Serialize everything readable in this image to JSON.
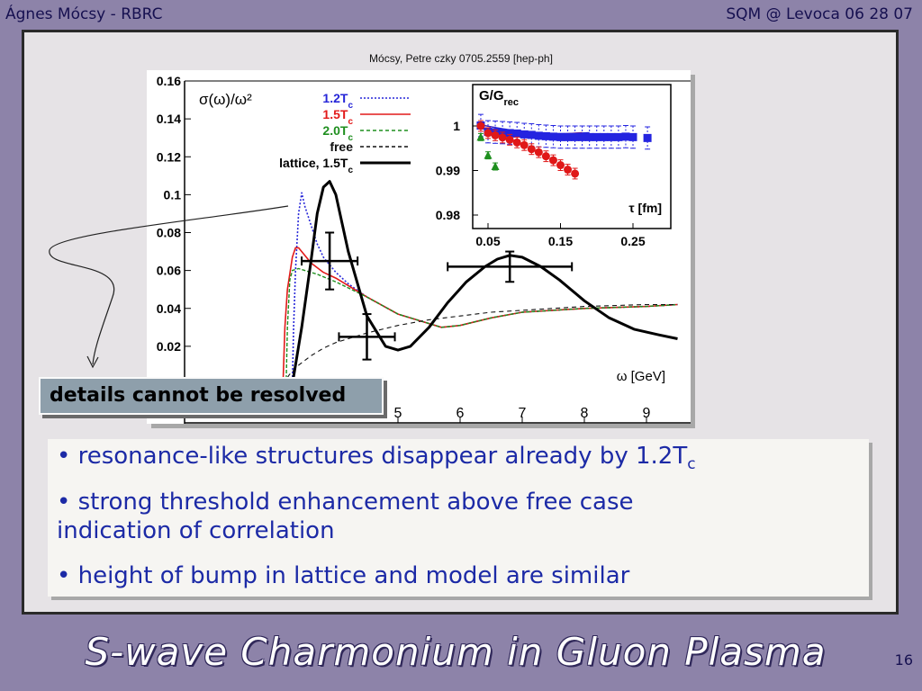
{
  "header": {
    "author": "Ágnes Mócsy - RBRC",
    "event": "SQM @ Levoca  06 28 07"
  },
  "citation": "Mócsy, Petre  czky 0705.2559 [hep-ph]",
  "chart_data": {
    "type": "line",
    "ylabel": "σ(ω)/ω²",
    "xlabel": "ω [GeV]",
    "x_ticks": [
      "5",
      "6",
      "7",
      "8",
      "9"
    ],
    "y_ticks": [
      "0.16",
      "0.14",
      "0.12",
      "0.1",
      "0.08",
      "0.06",
      "0.04",
      "0.02"
    ],
    "xlim": [
      3.2,
      9.5
    ],
    "ylim": [
      0,
      0.16
    ],
    "legend": {
      "placement": "top-left",
      "entries": [
        {
          "label": "1.2T",
          "sub": "c",
          "color": "#2626d8",
          "style": "dotted"
        },
        {
          "label": "1.5T",
          "sub": "c",
          "color": "#e21a1a",
          "style": "solid"
        },
        {
          "label": "2.0T",
          "sub": "c",
          "color": "#1f8f1f",
          "style": "dashed"
        },
        {
          "label": "free",
          "sub": "",
          "color": "#111111",
          "style": "dashed"
        },
        {
          "label": "lattice, 1.5T",
          "sub": "c",
          "color": "#000000",
          "style": "thick"
        }
      ]
    },
    "series": [
      {
        "name": "1.2Tc",
        "color": "#2626d8",
        "x": [
          3.3,
          3.32,
          3.35,
          3.4,
          3.45,
          3.5,
          3.6,
          3.7,
          3.8,
          4.0,
          4.2,
          4.5,
          5.0,
          5.5,
          5.7,
          6.0,
          6.5,
          7.0,
          8.0,
          9.0,
          9.5
        ],
        "y": [
          0.0,
          0.03,
          0.06,
          0.09,
          0.101,
          0.094,
          0.084,
          0.074,
          0.067,
          0.059,
          0.053,
          0.046,
          0.037,
          0.032,
          0.03,
          0.031,
          0.035,
          0.038,
          0.04,
          0.041,
          0.042
        ]
      },
      {
        "name": "1.5Tc",
        "color": "#e21a1a",
        "x": [
          3.15,
          3.18,
          3.22,
          3.3,
          3.35,
          3.4,
          3.5,
          3.6,
          3.8,
          4.0,
          4.5,
          5.0,
          5.5,
          5.7,
          6.0,
          6.5,
          7.0,
          8.0,
          9.0,
          9.5
        ],
        "y": [
          0.0,
          0.03,
          0.05,
          0.067,
          0.072,
          0.072,
          0.068,
          0.064,
          0.059,
          0.056,
          0.046,
          0.037,
          0.032,
          0.03,
          0.031,
          0.035,
          0.038,
          0.04,
          0.041,
          0.042
        ]
      },
      {
        "name": "2.0Tc",
        "color": "#1f8f1f",
        "x": [
          3.2,
          3.22,
          3.26,
          3.3,
          3.4,
          3.5,
          3.7,
          4.0,
          4.5,
          5.0,
          5.5,
          5.7,
          6.0,
          6.5,
          7.0,
          8.0,
          9.0,
          9.5
        ],
        "y": [
          0.0,
          0.03,
          0.055,
          0.06,
          0.061,
          0.06,
          0.058,
          0.054,
          0.046,
          0.037,
          0.032,
          0.03,
          0.031,
          0.035,
          0.038,
          0.04,
          0.041,
          0.042
        ]
      },
      {
        "name": "free",
        "color": "#111111",
        "x": [
          3.15,
          3.25,
          3.4,
          3.6,
          3.8,
          4.0,
          4.5,
          5.0,
          5.5,
          6.0,
          6.5,
          7.0,
          8.0,
          9.0,
          9.5
        ],
        "y": [
          0.0,
          0.005,
          0.01,
          0.015,
          0.019,
          0.022,
          0.027,
          0.031,
          0.034,
          0.036,
          0.038,
          0.039,
          0.041,
          0.042,
          0.042
        ]
      },
      {
        "name": "lattice, 1.5Tc",
        "color": "#000000",
        "x": [
          3.3,
          3.45,
          3.6,
          3.7,
          3.8,
          3.9,
          4.0,
          4.2,
          4.5,
          4.8,
          5.0,
          5.2,
          5.5,
          5.8,
          6.1,
          6.4,
          6.6,
          6.8,
          7.0,
          7.3,
          7.6,
          8.0,
          8.4,
          8.8,
          9.2,
          9.5
        ],
        "y": [
          0.0,
          0.03,
          0.065,
          0.09,
          0.104,
          0.107,
          0.1,
          0.07,
          0.036,
          0.02,
          0.018,
          0.02,
          0.03,
          0.043,
          0.054,
          0.062,
          0.066,
          0.068,
          0.067,
          0.062,
          0.055,
          0.044,
          0.035,
          0.029,
          0.026,
          0.024
        ]
      }
    ],
    "error_crosses": [
      {
        "x": 3.9,
        "y": 0.065,
        "dx": 0.45,
        "dy": 0.015
      },
      {
        "x": 4.5,
        "y": 0.025,
        "dx": 0.45,
        "dy": 0.012
      },
      {
        "x": 6.8,
        "y": 0.062,
        "dx": 1.0,
        "dy": 0.008
      }
    ],
    "inset": {
      "ylabel": "G/G",
      "ylabel_sub": "rec",
      "xlabel": "τ [fm]",
      "x_ticks": [
        "0.05",
        "0.15",
        "0.25"
      ],
      "y_ticks": [
        "1",
        "0.99",
        "0.98"
      ],
      "xlim": [
        0.035,
        0.28
      ],
      "ylim": [
        0.9775,
        1.0045
      ],
      "curves": [
        {
          "color": "#e21a1a",
          "x": [
            0.04,
            0.07,
            0.1,
            0.13,
            0.15,
            0.18
          ],
          "y": [
            1.0003,
            0.9993,
            0.9984,
            0.9981,
            0.9982,
            0.9985
          ]
        },
        {
          "color": "#2626d8",
          "x": [
            0.04,
            0.07,
            0.1,
            0.13,
            0.16,
            0.19
          ],
          "y": [
            1.0002,
            0.9994,
            0.9986,
            0.9983,
            0.9983,
            0.9985
          ]
        }
      ],
      "points": [
        {
          "series": "blue",
          "color": "#2424e0",
          "marker": "square",
          "x": [
            0.04,
            0.05,
            0.06,
            0.07,
            0.08,
            0.09,
            0.1,
            0.11,
            0.12,
            0.13,
            0.14,
            0.15,
            0.16,
            0.17,
            0.18,
            0.19,
            0.2,
            0.21,
            0.22,
            0.23,
            0.24,
            0.25,
            0.27
          ],
          "y": [
            1.0001,
            0.9987,
            0.9986,
            0.9985,
            0.9984,
            0.9983,
            0.9981,
            0.998,
            0.9978,
            0.9977,
            0.9976,
            0.9975,
            0.9975,
            0.9975,
            0.9975,
            0.9975,
            0.9975,
            0.9975,
            0.9975,
            0.9975,
            0.9976,
            0.9975,
            0.9973
          ],
          "err": 0.0025
        },
        {
          "series": "red",
          "color": "#e01818",
          "marker": "circle",
          "x": [
            0.04,
            0.05,
            0.06,
            0.07,
            0.08,
            0.09,
            0.1,
            0.11,
            0.12,
            0.13,
            0.14,
            0.15,
            0.16,
            0.17
          ],
          "y": [
            1.0,
            0.9984,
            0.9979,
            0.9974,
            0.9969,
            0.9963,
            0.9957,
            0.9948,
            0.9941,
            0.9932,
            0.9923,
            0.9912,
            0.9902,
            0.9893
          ],
          "err": 0.0012
        },
        {
          "series": "green",
          "color": "#1f8f1f",
          "marker": "triangle",
          "x": [
            0.04,
            0.05,
            0.06
          ],
          "y": [
            0.9975,
            0.9934,
            0.9909
          ],
          "err": 0.0008
        }
      ]
    }
  },
  "details_box": "details cannot be resolved",
  "bullets": [
    {
      "text": "• resonance-like structures disappear already by 1.2T",
      "sub": "c"
    },
    {
      "text": "• strong threshold enhancement above free case",
      "line2": "indication of correlation"
    },
    {
      "text": "• height of bump in lattice and model are similar"
    }
  ],
  "slide_title": "S-wave Charmonium in Gluon Plasma",
  "page_number": "16"
}
